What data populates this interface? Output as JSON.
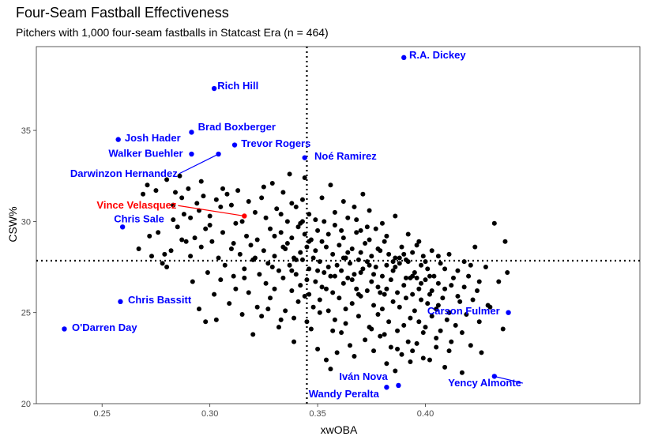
{
  "chart_data": {
    "type": "scatter",
    "title": "Four-Seam Fastball Effectiveness",
    "subtitle": "Pitchers with 1,000 four-seam fastballs in Statcast Era (n = 464)",
    "xlabel": "xwOBA",
    "ylabel": "CSW%",
    "xlim": [
      0.2195,
      0.4995
    ],
    "ylim": [
      20.0,
      39.6
    ],
    "xticks": [
      0.25,
      0.3,
      0.35,
      0.4
    ],
    "xtick_labels": [
      "0.25",
      "0.30",
      "0.35",
      "0.40"
    ],
    "yticks": [
      20,
      25,
      30,
      35
    ],
    "ytick_labels": [
      "20",
      "25",
      "30",
      "35"
    ],
    "grid": false,
    "reference_lines": {
      "x": 0.345,
      "y": 27.85
    },
    "colors": {
      "default": "#000000",
      "highlight": "#0000ff",
      "featured": "#ff0000"
    },
    "highlighted": [
      {
        "name": "R.A. Dickey",
        "x": 0.39,
        "y": 39.0,
        "color": "#0000ff",
        "label_x": 0.3925,
        "label_y": 38.95,
        "anchor": "start"
      },
      {
        "name": "Rich Hill",
        "x": 0.302,
        "y": 37.3,
        "color": "#0000ff",
        "label_x": 0.3035,
        "label_y": 37.25,
        "anchor": "start"
      },
      {
        "name": "Brad Boxberger",
        "x": 0.2915,
        "y": 34.9,
        "color": "#0000ff",
        "label_x": 0.2945,
        "label_y": 35.0,
        "anchor": "start"
      },
      {
        "name": "Josh Hader",
        "x": 0.2575,
        "y": 34.5,
        "color": "#0000ff",
        "label_x": 0.2605,
        "label_y": 34.4,
        "anchor": "start"
      },
      {
        "name": "Trevor Rogers",
        "x": 0.3115,
        "y": 34.2,
        "color": "#0000ff",
        "label_x": 0.3145,
        "label_y": 34.1,
        "anchor": "start"
      },
      {
        "name": "Walker Buehler",
        "x": 0.2915,
        "y": 33.7,
        "color": "#0000ff",
        "label_x": 0.2875,
        "label_y": 33.55,
        "anchor": "end"
      },
      {
        "name": "Noé Ramirez",
        "x": 0.344,
        "y": 33.5,
        "color": "#0000ff",
        "label_x": 0.3485,
        "label_y": 33.4,
        "anchor": "start"
      },
      {
        "name": "Darwinzon Hernandez",
        "x": 0.304,
        "y": 33.7,
        "color": "#0000ff",
        "label_x": 0.285,
        "label_y": 32.45,
        "anchor": "end"
      },
      {
        "name": "Vince Velasquez",
        "x": 0.316,
        "y": 30.3,
        "color": "#ff0000",
        "label_x": 0.2845,
        "label_y": 30.7,
        "anchor": "end"
      },
      {
        "name": "Chris Sale",
        "x": 0.2595,
        "y": 29.7,
        "color": "#0000ff",
        "label_x": 0.2555,
        "label_y": 29.95,
        "anchor": "start"
      },
      {
        "name": "Chris Bassitt",
        "x": 0.2585,
        "y": 25.6,
        "color": "#0000ff",
        "label_x": 0.262,
        "label_y": 25.5,
        "anchor": "start"
      },
      {
        "name": "O'Darren Day",
        "x": 0.2325,
        "y": 24.1,
        "color": "#0000ff",
        "label_x": 0.236,
        "label_y": 24.0,
        "anchor": "start"
      },
      {
        "name": "Carson Fulmer",
        "x": 0.4385,
        "y": 25.0,
        "color": "#0000ff",
        "label_x": 0.4345,
        "label_y": 24.9,
        "anchor": "end"
      },
      {
        "name": "Iván Nova",
        "x": 0.3875,
        "y": 21.0,
        "color": "#0000ff",
        "label_x": 0.3825,
        "label_y": 21.3,
        "anchor": "end"
      },
      {
        "name": "Wandy Peralta",
        "x": 0.382,
        "y": 20.9,
        "color": "#0000ff",
        "label_x": 0.3785,
        "label_y": 20.35,
        "anchor": "end"
      },
      {
        "name": "Yency Almonte",
        "x": 0.432,
        "y": 21.5,
        "color": "#0000ff",
        "label_x": 0.4445,
        "label_y": 20.95,
        "anchor": "end"
      }
    ],
    "points": [
      [
        0.267,
        28.5
      ],
      [
        0.269,
        31.5
      ],
      [
        0.271,
        32.0
      ],
      [
        0.272,
        29.2
      ],
      [
        0.273,
        28.1
      ],
      [
        0.275,
        31.7
      ],
      [
        0.276,
        29.4
      ],
      [
        0.278,
        27.7
      ],
      [
        0.279,
        28.2
      ],
      [
        0.28,
        27.5
      ],
      [
        0.28,
        32.3
      ],
      [
        0.282,
        28.4
      ],
      [
        0.283,
        30.1
      ],
      [
        0.284,
        31.6
      ],
      [
        0.285,
        29.7
      ],
      [
        0.286,
        32.5
      ],
      [
        0.287,
        31.3
      ],
      [
        0.288,
        30.4
      ],
      [
        0.289,
        28.9
      ],
      [
        0.29,
        31.8
      ],
      [
        0.291,
        30.2
      ],
      [
        0.292,
        26.7
      ],
      [
        0.293,
        29.1
      ],
      [
        0.294,
        31.0
      ],
      [
        0.295,
        25.2
      ],
      [
        0.295,
        30.6
      ],
      [
        0.296,
        28.6
      ],
      [
        0.297,
        31.4
      ],
      [
        0.298,
        29.6
      ],
      [
        0.298,
        24.5
      ],
      [
        0.299,
        27.2
      ],
      [
        0.3,
        30.3
      ],
      [
        0.301,
        28.9
      ],
      [
        0.302,
        26.0
      ],
      [
        0.303,
        31.2
      ],
      [
        0.303,
        24.6
      ],
      [
        0.304,
        28.0
      ],
      [
        0.305,
        30.8
      ],
      [
        0.305,
        26.8
      ],
      [
        0.306,
        29.4
      ],
      [
        0.307,
        27.6
      ],
      [
        0.308,
        31.5
      ],
      [
        0.309,
        25.5
      ],
      [
        0.31,
        28.5
      ],
      [
        0.31,
        30.9
      ],
      [
        0.311,
        27.0
      ],
      [
        0.312,
        29.9
      ],
      [
        0.312,
        26.3
      ],
      [
        0.313,
        31.7
      ],
      [
        0.314,
        28.2
      ],
      [
        0.315,
        24.9
      ],
      [
        0.315,
        30.0
      ],
      [
        0.316,
        27.4
      ],
      [
        0.317,
        29.2
      ],
      [
        0.318,
        26.1
      ],
      [
        0.318,
        31.1
      ],
      [
        0.319,
        28.7
      ],
      [
        0.32,
        23.8
      ],
      [
        0.32,
        27.9
      ],
      [
        0.321,
        30.5
      ],
      [
        0.322,
        25.3
      ],
      [
        0.322,
        29.0
      ],
      [
        0.323,
        27.1
      ],
      [
        0.324,
        31.3
      ],
      [
        0.324,
        24.8
      ],
      [
        0.325,
        28.4
      ],
      [
        0.326,
        26.6
      ],
      [
        0.326,
        30.2
      ],
      [
        0.327,
        27.7
      ],
      [
        0.328,
        29.6
      ],
      [
        0.328,
        25.8
      ],
      [
        0.329,
        32.1
      ],
      [
        0.33,
        28.1
      ],
      [
        0.33,
        26.3
      ],
      [
        0.331,
        30.7
      ],
      [
        0.332,
        27.3
      ],
      [
        0.332,
        24.2
      ],
      [
        0.333,
        29.4
      ],
      [
        0.334,
        26.9
      ],
      [
        0.334,
        31.6
      ],
      [
        0.335,
        28.5
      ],
      [
        0.335,
        25.1
      ],
      [
        0.336,
        30.0
      ],
      [
        0.337,
        27.6
      ],
      [
        0.337,
        32.6
      ],
      [
        0.338,
        26.2
      ],
      [
        0.338,
        29.1
      ],
      [
        0.339,
        28.0
      ],
      [
        0.339,
        24.7
      ],
      [
        0.34,
        30.8
      ],
      [
        0.34,
        27.1
      ],
      [
        0.341,
        25.6
      ],
      [
        0.341,
        29.7
      ],
      [
        0.342,
        28.3
      ],
      [
        0.342,
        26.5
      ],
      [
        0.343,
        31.2
      ],
      [
        0.343,
        27.9
      ],
      [
        0.344,
        29.3
      ],
      [
        0.344,
        25.9
      ],
      [
        0.345,
        28.6
      ],
      [
        0.345,
        26.8
      ],
      [
        0.346,
        30.4
      ],
      [
        0.346,
        27.4
      ],
      [
        0.347,
        24.1
      ],
      [
        0.347,
        29.0
      ],
      [
        0.348,
        28.0
      ],
      [
        0.348,
        25.3
      ],
      [
        0.349,
        30.1
      ],
      [
        0.349,
        26.7
      ],
      [
        0.35,
        29.5
      ],
      [
        0.35,
        23.0
      ],
      [
        0.351,
        27.8
      ],
      [
        0.351,
        25.7
      ],
      [
        0.352,
        28.9
      ],
      [
        0.352,
        26.4
      ],
      [
        0.353,
        30.0
      ],
      [
        0.353,
        27.2
      ],
      [
        0.354,
        22.4
      ],
      [
        0.354,
        28.6
      ],
      [
        0.355,
        25.1
      ],
      [
        0.355,
        29.3
      ],
      [
        0.356,
        27.0
      ],
      [
        0.356,
        21.9
      ],
      [
        0.357,
        28.2
      ],
      [
        0.357,
        26.1
      ],
      [
        0.358,
        29.8
      ],
      [
        0.358,
        24.6
      ],
      [
        0.359,
        27.6
      ],
      [
        0.359,
        22.8
      ],
      [
        0.36,
        28.7
      ],
      [
        0.36,
        25.8
      ],
      [
        0.361,
        27.3
      ],
      [
        0.361,
        23.9
      ],
      [
        0.362,
        29.1
      ],
      [
        0.362,
        26.6
      ],
      [
        0.363,
        28.0
      ],
      [
        0.363,
        24.4
      ],
      [
        0.364,
        30.2
      ],
      [
        0.364,
        26.9
      ],
      [
        0.365,
        27.7
      ],
      [
        0.365,
        23.2
      ],
      [
        0.366,
        28.5
      ],
      [
        0.366,
        25.5
      ],
      [
        0.367,
        27.1
      ],
      [
        0.367,
        22.6
      ],
      [
        0.368,
        29.4
      ],
      [
        0.368,
        26.3
      ],
      [
        0.369,
        27.9
      ],
      [
        0.369,
        24.8
      ],
      [
        0.37,
        28.3
      ],
      [
        0.37,
        25.9
      ],
      [
        0.371,
        31.5
      ],
      [
        0.371,
        27.4
      ],
      [
        0.372,
        23.5
      ],
      [
        0.372,
        28.8
      ],
      [
        0.373,
        26.2
      ],
      [
        0.373,
        27.8
      ],
      [
        0.374,
        24.2
      ],
      [
        0.374,
        29.0
      ],
      [
        0.375,
        26.7
      ],
      [
        0.375,
        28.1
      ],
      [
        0.376,
        22.9
      ],
      [
        0.376,
        25.4
      ],
      [
        0.377,
        27.5
      ],
      [
        0.377,
        29.6
      ],
      [
        0.378,
        24.9
      ],
      [
        0.378,
        26.4
      ],
      [
        0.379,
        28.4
      ],
      [
        0.379,
        23.7
      ],
      [
        0.38,
        27.0
      ],
      [
        0.38,
        25.2
      ],
      [
        0.381,
        28.9
      ],
      [
        0.381,
        26.0
      ],
      [
        0.382,
        22.2
      ],
      [
        0.382,
        27.6
      ],
      [
        0.383,
        24.5
      ],
      [
        0.383,
        28.2
      ],
      [
        0.384,
        26.8
      ],
      [
        0.384,
        23.1
      ],
      [
        0.385,
        27.3
      ],
      [
        0.385,
        25.6
      ],
      [
        0.386,
        21.8
      ],
      [
        0.386,
        28.0
      ],
      [
        0.387,
        26.1
      ],
      [
        0.387,
        24.0
      ],
      [
        0.388,
        27.7
      ],
      [
        0.388,
        25.3
      ],
      [
        0.389,
        28.6
      ],
      [
        0.389,
        22.7
      ],
      [
        0.39,
        26.5
      ],
      [
        0.39,
        24.3
      ],
      [
        0.391,
        27.9
      ],
      [
        0.391,
        25.8
      ],
      [
        0.392,
        29.3
      ],
      [
        0.392,
        23.4
      ],
      [
        0.393,
        26.9
      ],
      [
        0.393,
        24.7
      ],
      [
        0.394,
        28.3
      ],
      [
        0.394,
        22.9
      ],
      [
        0.395,
        27.2
      ],
      [
        0.395,
        25.1
      ],
      [
        0.396,
        28.7
      ],
      [
        0.396,
        23.3
      ],
      [
        0.397,
        26.3
      ],
      [
        0.397,
        24.5
      ],
      [
        0.398,
        27.6
      ],
      [
        0.398,
        25.7
      ],
      [
        0.399,
        28.1
      ],
      [
        0.399,
        23.9
      ],
      [
        0.4,
        26.8
      ],
      [
        0.4,
        24.2
      ],
      [
        0.401,
        27.4
      ],
      [
        0.401,
        25.5
      ],
      [
        0.402,
        22.4
      ],
      [
        0.402,
        26.0
      ],
      [
        0.403,
        28.4
      ],
      [
        0.403,
        24.8
      ],
      [
        0.404,
        27.0
      ],
      [
        0.405,
        25.2
      ],
      [
        0.405,
        23.6
      ],
      [
        0.406,
        26.6
      ],
      [
        0.407,
        24.0
      ],
      [
        0.407,
        27.7
      ],
      [
        0.408,
        25.8
      ],
      [
        0.409,
        22.0
      ],
      [
        0.409,
        26.3
      ],
      [
        0.41,
        24.6
      ],
      [
        0.411,
        28.2
      ],
      [
        0.411,
        25.0
      ],
      [
        0.412,
        23.4
      ],
      [
        0.413,
        26.9
      ],
      [
        0.414,
        24.3
      ],
      [
        0.415,
        27.3
      ],
      [
        0.416,
        25.6
      ],
      [
        0.417,
        21.7
      ],
      [
        0.418,
        26.4
      ],
      [
        0.419,
        24.9
      ],
      [
        0.42,
        27.0
      ],
      [
        0.421,
        23.2
      ],
      [
        0.422,
        25.7
      ],
      [
        0.423,
        28.6
      ],
      [
        0.424,
        26.2
      ],
      [
        0.425,
        24.5
      ],
      [
        0.426,
        22.8
      ],
      [
        0.428,
        27.5
      ],
      [
        0.43,
        25.3
      ],
      [
        0.432,
        29.9
      ],
      [
        0.434,
        26.7
      ],
      [
        0.436,
        24.1
      ],
      [
        0.438,
        27.2
      ],
      [
        0.283,
        30.9
      ],
      [
        0.287,
        29.0
      ],
      [
        0.291,
        28.1
      ],
      [
        0.296,
        32.2
      ],
      [
        0.3,
        29.8
      ],
      [
        0.306,
        31.8
      ],
      [
        0.311,
        28.8
      ],
      [
        0.316,
        26.9
      ],
      [
        0.321,
        28.0
      ],
      [
        0.325,
        31.9
      ],
      [
        0.329,
        27.5
      ],
      [
        0.333,
        30.4
      ],
      [
        0.336,
        28.8
      ],
      [
        0.34,
        27.9
      ],
      [
        0.343,
        30.0
      ],
      [
        0.346,
        26.0
      ],
      [
        0.349,
        28.4
      ],
      [
        0.352,
        31.3
      ],
      [
        0.355,
        27.5
      ],
      [
        0.358,
        30.5
      ],
      [
        0.361,
        29.5
      ],
      [
        0.364,
        28.3
      ],
      [
        0.367,
        30.8
      ],
      [
        0.37,
        27.2
      ],
      [
        0.373,
        29.7
      ],
      [
        0.376,
        27.1
      ],
      [
        0.379,
        26.1
      ],
      [
        0.382,
        29.2
      ],
      [
        0.385,
        27.8
      ],
      [
        0.388,
        28.0
      ],
      [
        0.391,
        26.9
      ],
      [
        0.394,
        27.0
      ],
      [
        0.397,
        28.9
      ],
      [
        0.4,
        27.8
      ],
      [
        0.403,
        26.2
      ],
      [
        0.406,
        28.1
      ],
      [
        0.409,
        27.4
      ],
      [
        0.412,
        26.5
      ],
      [
        0.415,
        25.9
      ],
      [
        0.418,
        27.8
      ],
      [
        0.33,
        29.2
      ],
      [
        0.334,
        28.6
      ],
      [
        0.338,
        27.3
      ],
      [
        0.342,
        29.9
      ],
      [
        0.346,
        28.9
      ],
      [
        0.35,
        27.3
      ],
      [
        0.354,
        26.3
      ],
      [
        0.358,
        27.0
      ],
      [
        0.362,
        28.0
      ],
      [
        0.366,
        26.8
      ],
      [
        0.37,
        29.5
      ],
      [
        0.374,
        27.6
      ],
      [
        0.378,
        28.5
      ],
      [
        0.382,
        26.3
      ],
      [
        0.386,
        27.5
      ],
      [
        0.39,
        28.2
      ],
      [
        0.394,
        26.0
      ],
      [
        0.398,
        26.6
      ],
      [
        0.402,
        27.0
      ],
      [
        0.406,
        25.4
      ],
      [
        0.338,
        31.0
      ],
      [
        0.344,
        32.4
      ],
      [
        0.356,
        32.0
      ],
      [
        0.362,
        31.1
      ],
      [
        0.368,
        30.1
      ],
      [
        0.374,
        30.6
      ],
      [
        0.38,
        29.9
      ],
      [
        0.386,
        30.3
      ],
      [
        0.392,
        27.8
      ],
      [
        0.396,
        26.9
      ],
      [
        0.327,
        25.2
      ],
      [
        0.333,
        24.6
      ],
      [
        0.339,
        23.4
      ],
      [
        0.345,
        24.5
      ],
      [
        0.351,
        25.0
      ],
      [
        0.357,
        24.0
      ],
      [
        0.363,
        25.2
      ],
      [
        0.369,
        26.0
      ],
      [
        0.375,
        24.1
      ],
      [
        0.381,
        23.8
      ],
      [
        0.387,
        23.0
      ],
      [
        0.393,
        22.3
      ],
      [
        0.399,
        22.5
      ],
      [
        0.405,
        23.1
      ],
      [
        0.411,
        22.9
      ],
      [
        0.417,
        23.9
      ],
      [
        0.421,
        27.6
      ],
      [
        0.425,
        26.7
      ],
      [
        0.429,
        25.4
      ],
      [
        0.437,
        28.9
      ]
    ]
  }
}
